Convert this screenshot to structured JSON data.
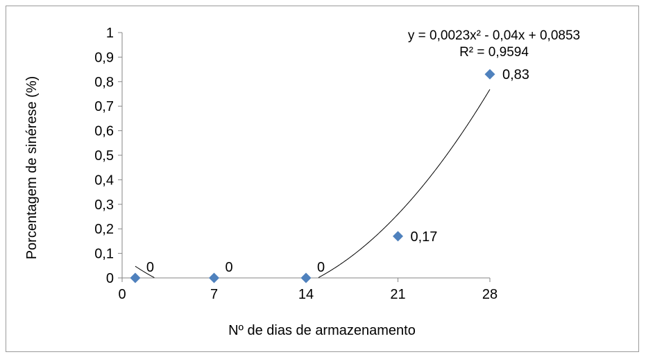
{
  "chart_data": {
    "type": "scatter",
    "title": "",
    "xlabel": "Nº de dias de armazenamento",
    "ylabel": "Porcentagem de sinérese (%)",
    "xlim": [
      0,
      28
    ],
    "ylim": [
      0,
      1
    ],
    "x_ticks": [
      0,
      7,
      14,
      21,
      28
    ],
    "x_tick_labels": [
      "0",
      "7",
      "14",
      "21",
      "28"
    ],
    "y_ticks": [
      0,
      0.1,
      0.2,
      0.3,
      0.4,
      0.5,
      0.6,
      0.7,
      0.8,
      0.9,
      1
    ],
    "y_tick_labels": [
      "0",
      "0,1",
      "0,2",
      "0,3",
      "0,4",
      "0,5",
      "0,6",
      "0,7",
      "0,8",
      "0,9",
      "1"
    ],
    "grid": false,
    "legend": "none",
    "series": [
      {
        "x": [
          1,
          7,
          14,
          21,
          28
        ],
        "y": [
          0,
          0,
          0,
          0.17,
          0.83
        ],
        "labels": [
          "0",
          "0",
          "0",
          "0,17",
          "0,83"
        ],
        "color": "#4f81bd",
        "marker": "diamond"
      }
    ],
    "trendline": {
      "type": "polynomial",
      "order": 2,
      "coefficients": [
        0.0023,
        -0.04,
        0.0853
      ],
      "equation": "y = 0,0023x² - 0,04x + 0,0853",
      "r_squared": "R² = 0,9594",
      "color": "#000000"
    }
  }
}
